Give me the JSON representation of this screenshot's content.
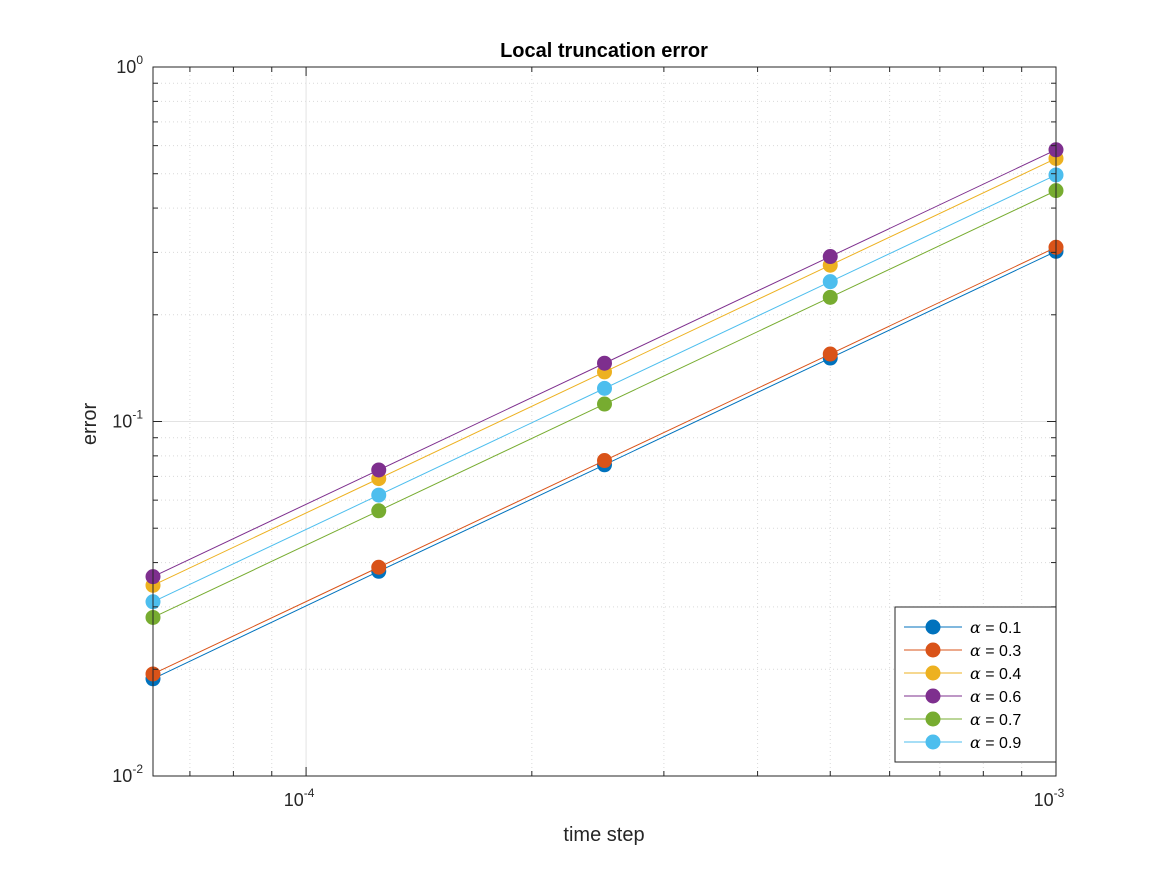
{
  "chart_data": {
    "type": "line",
    "title": "Local truncation error",
    "xlabel": "time step",
    "ylabel": "error",
    "xscale": "log",
    "yscale": "log",
    "xlim": [
      6.25e-05,
      0.001
    ],
    "ylim": [
      0.01,
      1
    ],
    "grid": true,
    "minor_grid": true,
    "legend_position": "bottom-right",
    "x_ticks": [
      {
        "value": 0.0001,
        "base": "10",
        "exp": "-4"
      },
      {
        "value": 0.001,
        "base": "10",
        "exp": "-3"
      }
    ],
    "y_ticks": [
      {
        "value": 0.01,
        "base": "10",
        "exp": "-2"
      },
      {
        "value": 0.1,
        "base": "10",
        "exp": "-1"
      },
      {
        "value": 1,
        "base": "10",
        "exp": "0"
      }
    ],
    "x": [
      6.25e-05,
      0.000125,
      0.00025,
      0.0005,
      0.001
    ],
    "series": [
      {
        "symbol": "α",
        "label": " = 0.1",
        "color": "#0072BD",
        "values": [
          0.0188,
          0.0378,
          0.0755,
          0.151,
          0.302
        ]
      },
      {
        "symbol": "α",
        "label": " = 0.3",
        "color": "#D95319",
        "values": [
          0.0194,
          0.0388,
          0.0776,
          0.155,
          0.31
        ]
      },
      {
        "symbol": "α",
        "label": " = 0.4",
        "color": "#EDB120",
        "values": [
          0.0345,
          0.069,
          0.138,
          0.276,
          0.552
        ]
      },
      {
        "symbol": "α",
        "label": " = 0.6",
        "color": "#7E2F8E",
        "values": [
          0.0365,
          0.073,
          0.146,
          0.292,
          0.584
        ]
      },
      {
        "symbol": "α",
        "label": " = 0.7",
        "color": "#77AC30",
        "values": [
          0.028,
          0.056,
          0.112,
          0.224,
          0.448
        ]
      },
      {
        "symbol": "α",
        "label": " = 0.9",
        "color": "#4DBEEE",
        "values": [
          0.031,
          0.062,
          0.124,
          0.248,
          0.496
        ]
      }
    ]
  }
}
